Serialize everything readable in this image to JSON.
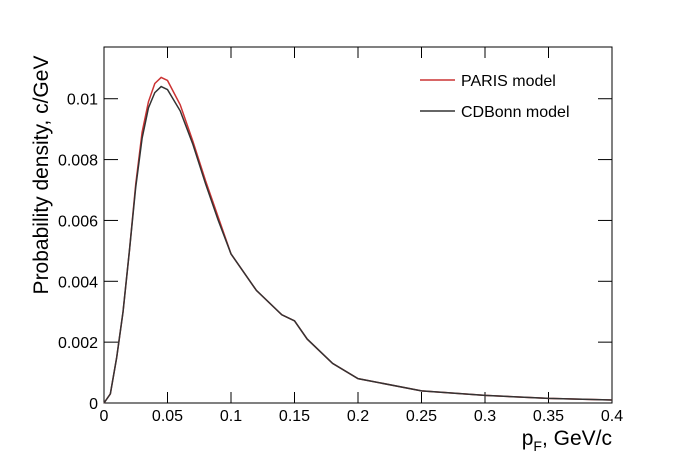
{
  "chart_data": {
    "type": "line",
    "x_label": {
      "main": "p",
      "sub": "F",
      "rest": ", GeV/c"
    },
    "y_label": "Probability density, c/GeV",
    "x": [
      0,
      0.005,
      0.01,
      0.015,
      0.02,
      0.025,
      0.03,
      0.035,
      0.04,
      0.045,
      0.05,
      0.06,
      0.07,
      0.08,
      0.09,
      0.1,
      0.12,
      0.14,
      0.15,
      0.16,
      0.18,
      0.2,
      0.25,
      0.3,
      0.35,
      0.4
    ],
    "series": [
      {
        "name": "PARIS model",
        "color": "#cc3333",
        "values": [
          0,
          0.0003,
          0.0015,
          0.003,
          0.005,
          0.0072,
          0.0089,
          0.0099,
          0.0105,
          0.0107,
          0.0106,
          0.0098,
          0.0086,
          0.0073,
          0.0061,
          0.0049,
          0.0037,
          0.0029,
          0.0027,
          0.0021,
          0.0013,
          0.0008,
          0.0004,
          0.00025,
          0.00015,
          0.0001
        ]
      },
      {
        "name": "CDBonn model",
        "color": "#333333",
        "values": [
          0,
          0.0003,
          0.0015,
          0.003,
          0.005,
          0.0071,
          0.0087,
          0.0097,
          0.0102,
          0.0104,
          0.0103,
          0.0096,
          0.0085,
          0.0072,
          0.006,
          0.0049,
          0.0037,
          0.0029,
          0.0027,
          0.0021,
          0.0013,
          0.0008,
          0.0004,
          0.00025,
          0.00015,
          0.0001
        ]
      }
    ],
    "xlim": [
      0,
      0.4
    ],
    "xticks": [
      0,
      0.05,
      0.1,
      0.15,
      0.2,
      0.25,
      0.3,
      0.35,
      0.4
    ],
    "ylim": [
      0,
      0.0117
    ],
    "yticks": [
      0,
      0.002,
      0.004,
      0.006,
      0.008,
      0.01
    ],
    "legend": "top-right"
  }
}
